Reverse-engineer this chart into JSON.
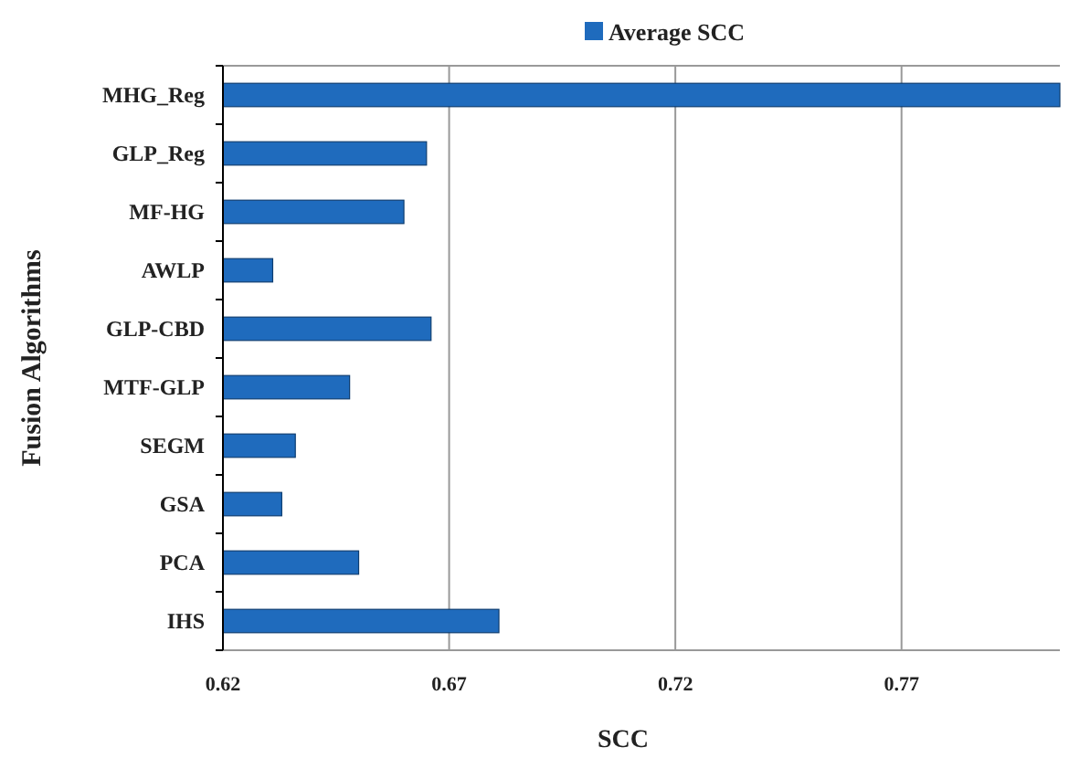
{
  "chart_data": {
    "type": "bar",
    "orientation": "horizontal",
    "xlabel": "SCC",
    "ylabel": "Fusion Algorithms",
    "categories": [
      "MHG_Reg",
      "GLP_Reg",
      "MF-HG",
      "AWLP",
      "GLP-CBD",
      "MTF-GLP",
      "SEGM",
      "GSA",
      "PCA",
      "IHS"
    ],
    "series": [
      {
        "name": "Average SCC",
        "color": "#1f6bbd",
        "values": [
          0.805,
          0.665,
          0.66,
          0.631,
          0.666,
          0.648,
          0.636,
          0.633,
          0.65,
          0.681
        ]
      }
    ],
    "xlim": [
      0.62,
      0.805
    ],
    "xticks": [
      0.62,
      0.67,
      0.72,
      0.77
    ],
    "grid": "x",
    "legend": "top"
  }
}
